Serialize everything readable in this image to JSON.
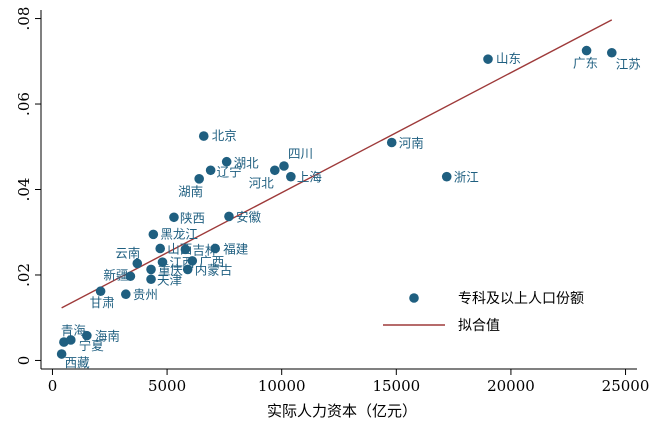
{
  "chart_data": {
    "type": "scatter",
    "xlabel": "实际人力资本（亿元）",
    "ylabel": "",
    "xlim": [
      -500,
      25500
    ],
    "ylim": [
      -0.002,
      0.082
    ],
    "x_ticks": [
      0,
      5000,
      10000,
      15000,
      20000,
      25000
    ],
    "x_tick_labels": [
      "0",
      "5000",
      "10000",
      "15000",
      "20000",
      "25000"
    ],
    "y_ticks": [
      0,
      0.02,
      0.04,
      0.06,
      0.08
    ],
    "y_tick_labels": [
      "0",
      ".02",
      ".04",
      ".06",
      ".08"
    ],
    "grid": false,
    "legend_position": "bottom-right",
    "series": [
      {
        "name": "专科及以上人口份额",
        "color": "#1f5f80",
        "points": [
          {
            "label": "山东",
            "x": 19000,
            "y": 0.0705
          },
          {
            "label": "广东",
            "x": 23300,
            "y": 0.0725
          },
          {
            "label": "江苏",
            "x": 24400,
            "y": 0.072
          },
          {
            "label": "河南",
            "x": 14800,
            "y": 0.051
          },
          {
            "label": "浙江",
            "x": 17200,
            "y": 0.043
          },
          {
            "label": "北京",
            "x": 6600,
            "y": 0.0525
          },
          {
            "label": "湖北",
            "x": 7600,
            "y": 0.0465
          },
          {
            "label": "四川",
            "x": 10100,
            "y": 0.0455
          },
          {
            "label": "辽宁",
            "x": 6900,
            "y": 0.0445
          },
          {
            "label": "河北",
            "x": 9700,
            "y": 0.0445
          },
          {
            "label": "湖南",
            "x": 6400,
            "y": 0.0425
          },
          {
            "label": "上海",
            "x": 10400,
            "y": 0.043
          },
          {
            "label": "陕西",
            "x": 5300,
            "y": 0.0335
          },
          {
            "label": "安徽",
            "x": 7700,
            "y": 0.0337
          },
          {
            "label": "黑龙江",
            "x": 4400,
            "y": 0.0295
          },
          {
            "label": "山西",
            "x": 4700,
            "y": 0.0262
          },
          {
            "label": "吉林",
            "x": 5800,
            "y": 0.026
          },
          {
            "label": "福建",
            "x": 7100,
            "y": 0.0262
          },
          {
            "label": "云南",
            "x": 3700,
            "y": 0.0227
          },
          {
            "label": "江西",
            "x": 4800,
            "y": 0.023
          },
          {
            "label": "广西",
            "x": 6100,
            "y": 0.0233
          },
          {
            "label": "重庆",
            "x": 4300,
            "y": 0.0213
          },
          {
            "label": "内蒙古",
            "x": 5900,
            "y": 0.0213
          },
          {
            "label": "新疆",
            "x": 3400,
            "y": 0.0197
          },
          {
            "label": "天津",
            "x": 4300,
            "y": 0.019
          },
          {
            "label": "甘肃",
            "x": 2100,
            "y": 0.0162
          },
          {
            "label": "贵州",
            "x": 3200,
            "y": 0.0155
          },
          {
            "label": "青海",
            "x": 500,
            "y": 0.0043
          },
          {
            "label": "海南",
            "x": 1500,
            "y": 0.0058
          },
          {
            "label": "宁夏",
            "x": 800,
            "y": 0.0048
          },
          {
            "label": "西藏",
            "x": 400,
            "y": 0.0015
          }
        ]
      },
      {
        "name": "拟合值",
        "color": "#9e3a3a",
        "type": "line",
        "x": [
          400,
          24400
        ],
        "y": [
          0.0123,
          0.0797
        ]
      }
    ]
  }
}
